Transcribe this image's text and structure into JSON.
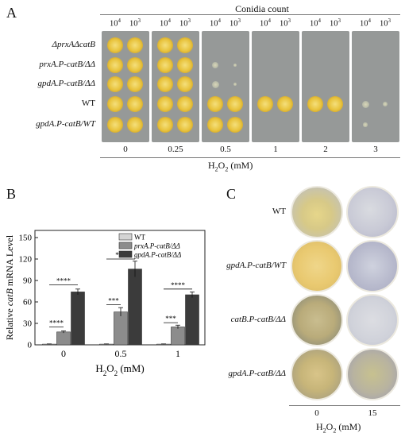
{
  "panelA": {
    "letter": "A",
    "top_title": "Conidia count",
    "col_powers": [
      "10",
      "4",
      "10",
      "3"
    ],
    "row_labels": [
      "ΔprxAΔcatB",
      "prxA.P-catB/ΔΔ",
      "gpdA.P-catB/ΔΔ",
      "WT",
      "gpdA.P-catB/WT"
    ],
    "x_values": [
      "0",
      "0.25",
      "0.5",
      "1",
      "2",
      "3"
    ],
    "x_axis_label_main": "H",
    "x_axis_label_sub": "2",
    "x_axis_label_mid": "O",
    "x_axis_label_sub2": "2",
    "x_axis_label_unit": " (mM)",
    "colony_color": "#e8c23a",
    "plate_color": "#969998"
  },
  "panelB": {
    "letter": "B",
    "chart_data": {
      "type": "bar",
      "categories": [
        "0",
        "0.5",
        "1"
      ],
      "series": [
        {
          "name": "WT",
          "values": [
            1,
            1,
            1
          ],
          "errors": [
            0.3,
            0.3,
            0.3
          ],
          "color": "#d4d4d4"
        },
        {
          "name": "prxA.P-catB/ΔΔ",
          "values": [
            18,
            46,
            25
          ],
          "errors": [
            1.5,
            6,
            2.5
          ],
          "color": "#8c8c8c"
        },
        {
          "name": "gpdA.P-catB/ΔΔ",
          "values": [
            74,
            106,
            70
          ],
          "errors": [
            4,
            11,
            4
          ],
          "color": "#3b3b3b"
        }
      ],
      "yticks": [
        "0",
        "30",
        "60",
        "90",
        "120",
        "150"
      ],
      "ylim": [
        0,
        160
      ],
      "ylabel_prefix": "Relative ",
      "ylabel_italic": "catB",
      "ylabel_suffix": " mRNA Level",
      "xlabel": "H",
      "xlabel_sub": "2",
      "xlabel_mid": "O",
      "xlabel_sub2": "2",
      "xlabel_unit": " (mM)",
      "significance": [
        {
          "text": "****",
          "group": 0
        },
        {
          "text": "****",
          "group": 0
        },
        {
          "text": "***",
          "group": 1
        },
        {
          "text": "***",
          "group": 1
        },
        {
          "text": "***",
          "group": 2
        },
        {
          "text": "****",
          "group": 2
        }
      ]
    }
  },
  "panelC": {
    "letter": "C",
    "row_labels": [
      "WT",
      "gpdA.P-catB/WT",
      "catB.P-catB/ΔΔ",
      "gpdA.P-catB/ΔΔ"
    ],
    "x_values": [
      "0",
      "15"
    ],
    "x_axis_label_main": "H",
    "x_axis_label_sub": "2",
    "x_axis_label_mid": "O",
    "x_axis_label_sub2": "2",
    "x_axis_label_unit": " (mM)"
  }
}
